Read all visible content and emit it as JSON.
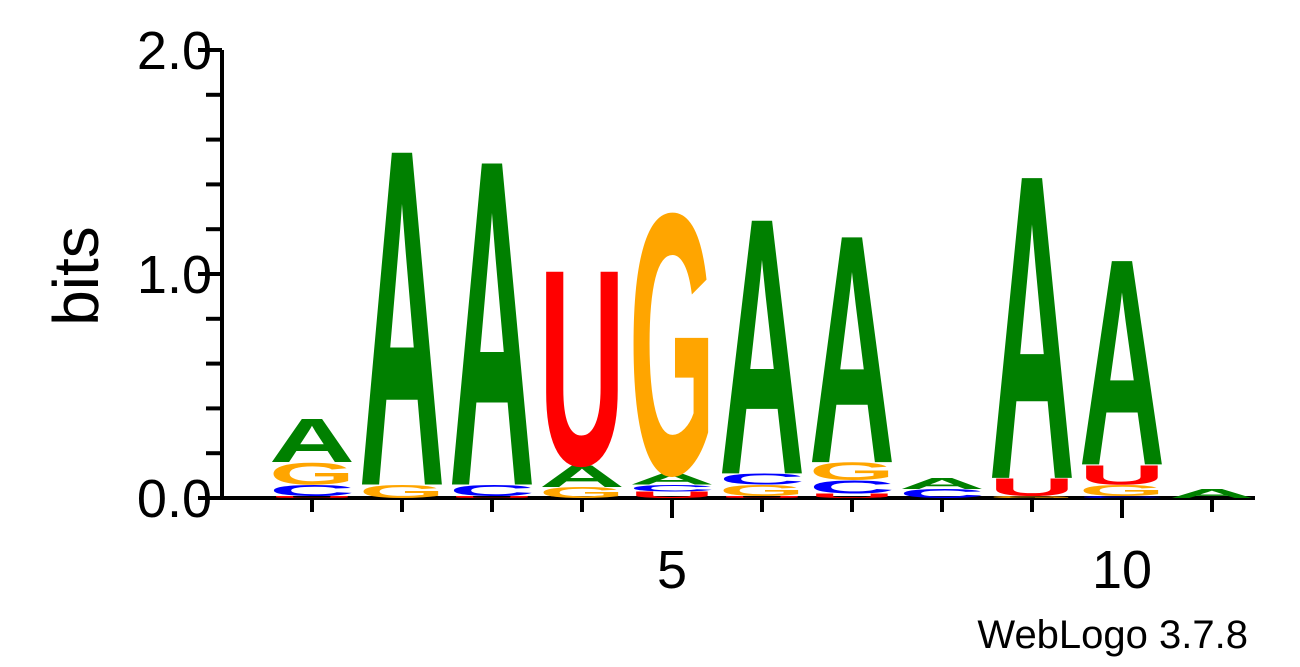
{
  "chart_data": {
    "type": "sequence-logo",
    "ylabel": "bits",
    "ylim": [
      0,
      2
    ],
    "y_ticks": [
      {
        "value": 0,
        "label": "0.0"
      },
      {
        "value": 1,
        "label": "1.0"
      },
      {
        "value": 2,
        "label": "2.0"
      }
    ],
    "x_ticks": [
      {
        "value": 5,
        "label": "5"
      },
      {
        "value": 10,
        "label": "10"
      }
    ],
    "credit": "WebLogo 3.7.8",
    "colors": {
      "A": "#008000",
      "C": "#0000ff",
      "G": "#ffa500",
      "U": "#ff0000"
    },
    "positions": [
      {
        "pos": 1,
        "stack": [
          {
            "letter": "U",
            "bits": 0.01
          },
          {
            "letter": "C",
            "bits": 0.05
          },
          {
            "letter": "G",
            "bits": 0.1
          },
          {
            "letter": "A",
            "bits": 0.2
          }
        ]
      },
      {
        "pos": 2,
        "stack": [
          {
            "letter": "G",
            "bits": 0.06
          },
          {
            "letter": "A",
            "bits": 1.55
          }
        ]
      },
      {
        "pos": 3,
        "stack": [
          {
            "letter": "U",
            "bits": 0.01
          },
          {
            "letter": "C",
            "bits": 0.05
          },
          {
            "letter": "A",
            "bits": 1.5
          }
        ]
      },
      {
        "pos": 4,
        "stack": [
          {
            "letter": "G",
            "bits": 0.05
          },
          {
            "letter": "A",
            "bits": 0.1
          },
          {
            "letter": "U",
            "bits": 0.9
          }
        ]
      },
      {
        "pos": 5,
        "stack": [
          {
            "letter": "U",
            "bits": 0.03
          },
          {
            "letter": "C",
            "bits": 0.03
          },
          {
            "letter": "A",
            "bits": 0.05
          },
          {
            "letter": "G",
            "bits": 1.2
          }
        ]
      },
      {
        "pos": 6,
        "stack": [
          {
            "letter": "U",
            "bits": 0.01
          },
          {
            "letter": "G",
            "bits": 0.05
          },
          {
            "letter": "C",
            "bits": 0.05
          },
          {
            "letter": "A",
            "bits": 1.18
          }
        ]
      },
      {
        "pos": 7,
        "stack": [
          {
            "letter": "U",
            "bits": 0.02
          },
          {
            "letter": "C",
            "bits": 0.06
          },
          {
            "letter": "G",
            "bits": 0.08
          },
          {
            "letter": "A",
            "bits": 1.05
          }
        ]
      },
      {
        "pos": 8,
        "stack": [
          {
            "letter": "C",
            "bits": 0.04
          },
          {
            "letter": "A",
            "bits": 0.05
          }
        ]
      },
      {
        "pos": 9,
        "stack": [
          {
            "letter": "G",
            "bits": 0.01
          },
          {
            "letter": "U",
            "bits": 0.08
          },
          {
            "letter": "A",
            "bits": 1.4
          }
        ]
      },
      {
        "pos": 10,
        "stack": [
          {
            "letter": "C",
            "bits": 0.01
          },
          {
            "letter": "G",
            "bits": 0.05
          },
          {
            "letter": "U",
            "bits": 0.09
          },
          {
            "letter": "A",
            "bits": 0.95
          }
        ]
      },
      {
        "pos": 11,
        "stack": [
          {
            "letter": "A",
            "bits": 0.04
          }
        ]
      }
    ]
  }
}
